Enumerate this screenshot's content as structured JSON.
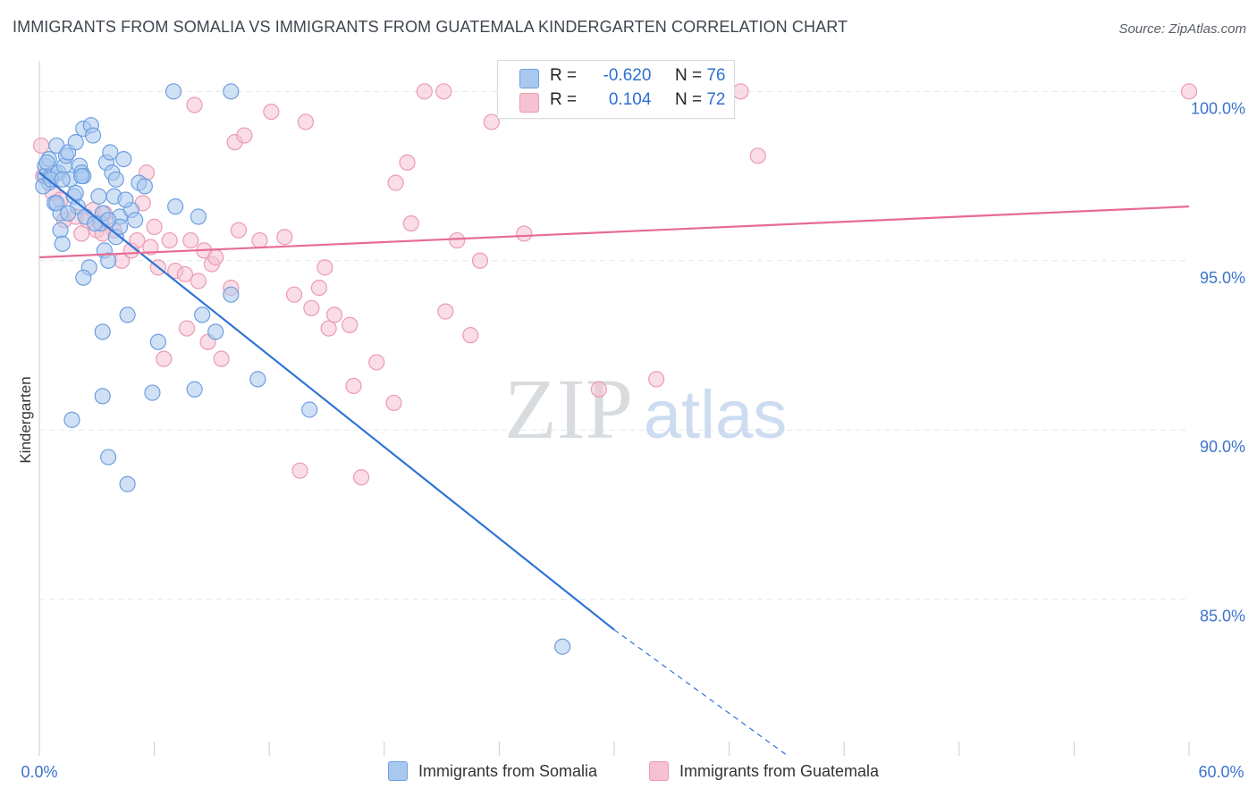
{
  "header": {
    "title": "IMMIGRANTS FROM SOMALIA VS IMMIGRANTS FROM GUATEMALA KINDERGARTEN CORRELATION CHART",
    "source": "Source: ZipAtlas.com"
  },
  "watermark": {
    "zip": "ZIP",
    "atlas": "atlas"
  },
  "legend": {
    "rows": [
      {
        "r_label": "R =",
        "r_value": "-0.620",
        "n_label": "N =",
        "n_value": "76"
      },
      {
        "r_label": "R =",
        "r_value": "0.104",
        "n_label": "N =",
        "n_value": "72"
      }
    ]
  },
  "colors": {
    "blue_fill": "#a9c8ee",
    "blue_stroke": "#6e9fe0",
    "blue_line": "#2f74d6",
    "pink_fill": "#f6c1d2",
    "pink_stroke": "#ec9ab5",
    "pink_line": "#e76b96",
    "tick_label": "#3c74cc",
    "grid": "#e4e7eb"
  },
  "chart_data": {
    "type": "scatter",
    "title": "IMMIGRANTS FROM SOMALIA VS IMMIGRANTS FROM GUATEMALA KINDERGARTEN CORRELATION CHART",
    "xlabel": "",
    "ylabel": "Kindergarten",
    "xlim": [
      0,
      60
    ],
    "ylim": [
      80.4,
      100.8
    ],
    "x_tick_labels": [
      "0.0%",
      "60.0%"
    ],
    "y_ticks": [
      85,
      90,
      95,
      100
    ],
    "y_tick_labels": [
      "85.0%",
      "90.0%",
      "95.0%",
      "100.0%"
    ],
    "grid": true,
    "legend_placement": "top-center",
    "series": [
      {
        "name": "Immigrants from Somalia",
        "r": -0.62,
        "n": 76,
        "trend": {
          "x0": 0.0,
          "y0": 97.6,
          "x1": 30.0,
          "y1": 84.1,
          "dashed_to_x": 39.0,
          "dashed_to_y": 80.4
        },
        "points": [
          [
            0.3,
            97.8
          ],
          [
            0.3,
            97.5
          ],
          [
            0.5,
            98.0
          ],
          [
            0.5,
            97.3
          ],
          [
            0.6,
            97.5
          ],
          [
            0.8,
            97.6
          ],
          [
            0.8,
            96.7
          ],
          [
            0.9,
            98.4
          ],
          [
            1.0,
            97.6
          ],
          [
            1.1,
            96.4
          ],
          [
            1.1,
            95.9
          ],
          [
            1.2,
            95.5
          ],
          [
            1.3,
            97.8
          ],
          [
            1.4,
            98.1
          ],
          [
            1.5,
            98.2
          ],
          [
            1.6,
            97.4
          ],
          [
            1.8,
            96.9
          ],
          [
            1.9,
            98.5
          ],
          [
            2.0,
            96.6
          ],
          [
            2.1,
            97.8
          ],
          [
            2.2,
            97.6
          ],
          [
            2.3,
            98.9
          ],
          [
            2.3,
            97.5
          ],
          [
            2.4,
            96.3
          ],
          [
            2.6,
            94.8
          ],
          [
            2.7,
            99.0
          ],
          [
            2.8,
            98.7
          ],
          [
            3.1,
            96.9
          ],
          [
            3.2,
            96.1
          ],
          [
            3.3,
            96.4
          ],
          [
            3.4,
            95.3
          ],
          [
            3.5,
            97.9
          ],
          [
            3.6,
            95.0
          ],
          [
            3.7,
            98.2
          ],
          [
            3.8,
            97.6
          ],
          [
            3.9,
            96.9
          ],
          [
            4.0,
            97.4
          ],
          [
            4.0,
            95.7
          ],
          [
            4.2,
            96.3
          ],
          [
            4.2,
            96.0
          ],
          [
            4.4,
            98.0
          ],
          [
            4.8,
            96.5
          ],
          [
            5.2,
            97.3
          ],
          [
            5.5,
            97.2
          ],
          [
            7.0,
            100.0
          ],
          [
            10.0,
            100.0
          ],
          [
            8.3,
            96.3
          ],
          [
            2.3,
            94.5
          ],
          [
            3.3,
            92.9
          ],
          [
            4.6,
            93.4
          ],
          [
            6.2,
            92.6
          ],
          [
            7.1,
            96.6
          ],
          [
            8.5,
            93.4
          ],
          [
            9.2,
            92.9
          ],
          [
            10.0,
            94.0
          ],
          [
            11.4,
            91.5
          ],
          [
            5.9,
            91.1
          ],
          [
            8.1,
            91.2
          ],
          [
            3.3,
            91.0
          ],
          [
            1.7,
            90.3
          ],
          [
            3.6,
            89.2
          ],
          [
            4.6,
            88.4
          ],
          [
            14.1,
            90.6
          ],
          [
            27.3,
            83.6
          ],
          [
            0.2,
            97.2
          ],
          [
            0.6,
            97.4
          ],
          [
            1.5,
            96.4
          ],
          [
            2.2,
            97.5
          ],
          [
            2.9,
            96.1
          ],
          [
            3.6,
            96.2
          ],
          [
            4.5,
            96.8
          ],
          [
            1.2,
            97.4
          ],
          [
            0.4,
            97.9
          ],
          [
            0.9,
            96.7
          ],
          [
            1.9,
            97.0
          ],
          [
            5.0,
            96.2
          ]
        ]
      },
      {
        "name": "Immigrants from Guatemala",
        "r": 0.104,
        "n": 72,
        "trend": {
          "x0": 0.0,
          "y0": 95.1,
          "x1": 60.0,
          "y1": 96.6
        },
        "points": [
          [
            0.1,
            98.4
          ],
          [
            0.2,
            97.5
          ],
          [
            0.7,
            97.0
          ],
          [
            1.1,
            96.8
          ],
          [
            1.3,
            96.2
          ],
          [
            1.9,
            96.3
          ],
          [
            2.2,
            95.8
          ],
          [
            2.5,
            96.2
          ],
          [
            2.8,
            96.5
          ],
          [
            3.0,
            95.9
          ],
          [
            3.4,
            96.4
          ],
          [
            3.6,
            96.2
          ],
          [
            3.9,
            95.9
          ],
          [
            4.3,
            95.0
          ],
          [
            4.8,
            95.3
          ],
          [
            5.1,
            95.6
          ],
          [
            5.4,
            96.7
          ],
          [
            5.8,
            95.4
          ],
          [
            6.0,
            96.0
          ],
          [
            6.2,
            94.8
          ],
          [
            6.5,
            92.1
          ],
          [
            6.8,
            95.6
          ],
          [
            7.1,
            94.7
          ],
          [
            7.6,
            94.6
          ],
          [
            7.7,
            93.0
          ],
          [
            7.9,
            95.6
          ],
          [
            8.1,
            99.6
          ],
          [
            8.3,
            94.4
          ],
          [
            8.6,
            95.3
          ],
          [
            8.8,
            92.6
          ],
          [
            9.0,
            94.9
          ],
          [
            9.2,
            95.1
          ],
          [
            9.5,
            92.1
          ],
          [
            10.0,
            94.2
          ],
          [
            10.2,
            98.5
          ],
          [
            10.4,
            95.9
          ],
          [
            10.7,
            98.7
          ],
          [
            11.5,
            95.6
          ],
          [
            12.1,
            99.4
          ],
          [
            12.8,
            95.7
          ],
          [
            13.3,
            94.0
          ],
          [
            13.6,
            88.8
          ],
          [
            13.9,
            99.1
          ],
          [
            14.2,
            93.6
          ],
          [
            14.6,
            94.2
          ],
          [
            14.9,
            94.8
          ],
          [
            15.1,
            93.0
          ],
          [
            15.4,
            93.4
          ],
          [
            16.2,
            93.1
          ],
          [
            16.4,
            91.3
          ],
          [
            16.8,
            88.6
          ],
          [
            17.6,
            92.0
          ],
          [
            18.5,
            90.8
          ],
          [
            18.6,
            97.3
          ],
          [
            19.2,
            97.9
          ],
          [
            19.4,
            96.1
          ],
          [
            20.1,
            100.0
          ],
          [
            21.2,
            93.5
          ],
          [
            21.1,
            100.0
          ],
          [
            21.8,
            95.6
          ],
          [
            22.5,
            92.8
          ],
          [
            23.0,
            95.0
          ],
          [
            23.6,
            99.1
          ],
          [
            25.3,
            95.8
          ],
          [
            29.2,
            91.2
          ],
          [
            32.2,
            91.5
          ],
          [
            33.0,
            100.0
          ],
          [
            36.6,
            100.0
          ],
          [
            37.5,
            98.1
          ],
          [
            60.0,
            100.0
          ],
          [
            3.3,
            95.8
          ],
          [
            5.6,
            97.6
          ]
        ]
      }
    ]
  },
  "bottom_legend": {
    "items": [
      "Immigrants from Somalia",
      "Immigrants from Guatemala"
    ]
  }
}
